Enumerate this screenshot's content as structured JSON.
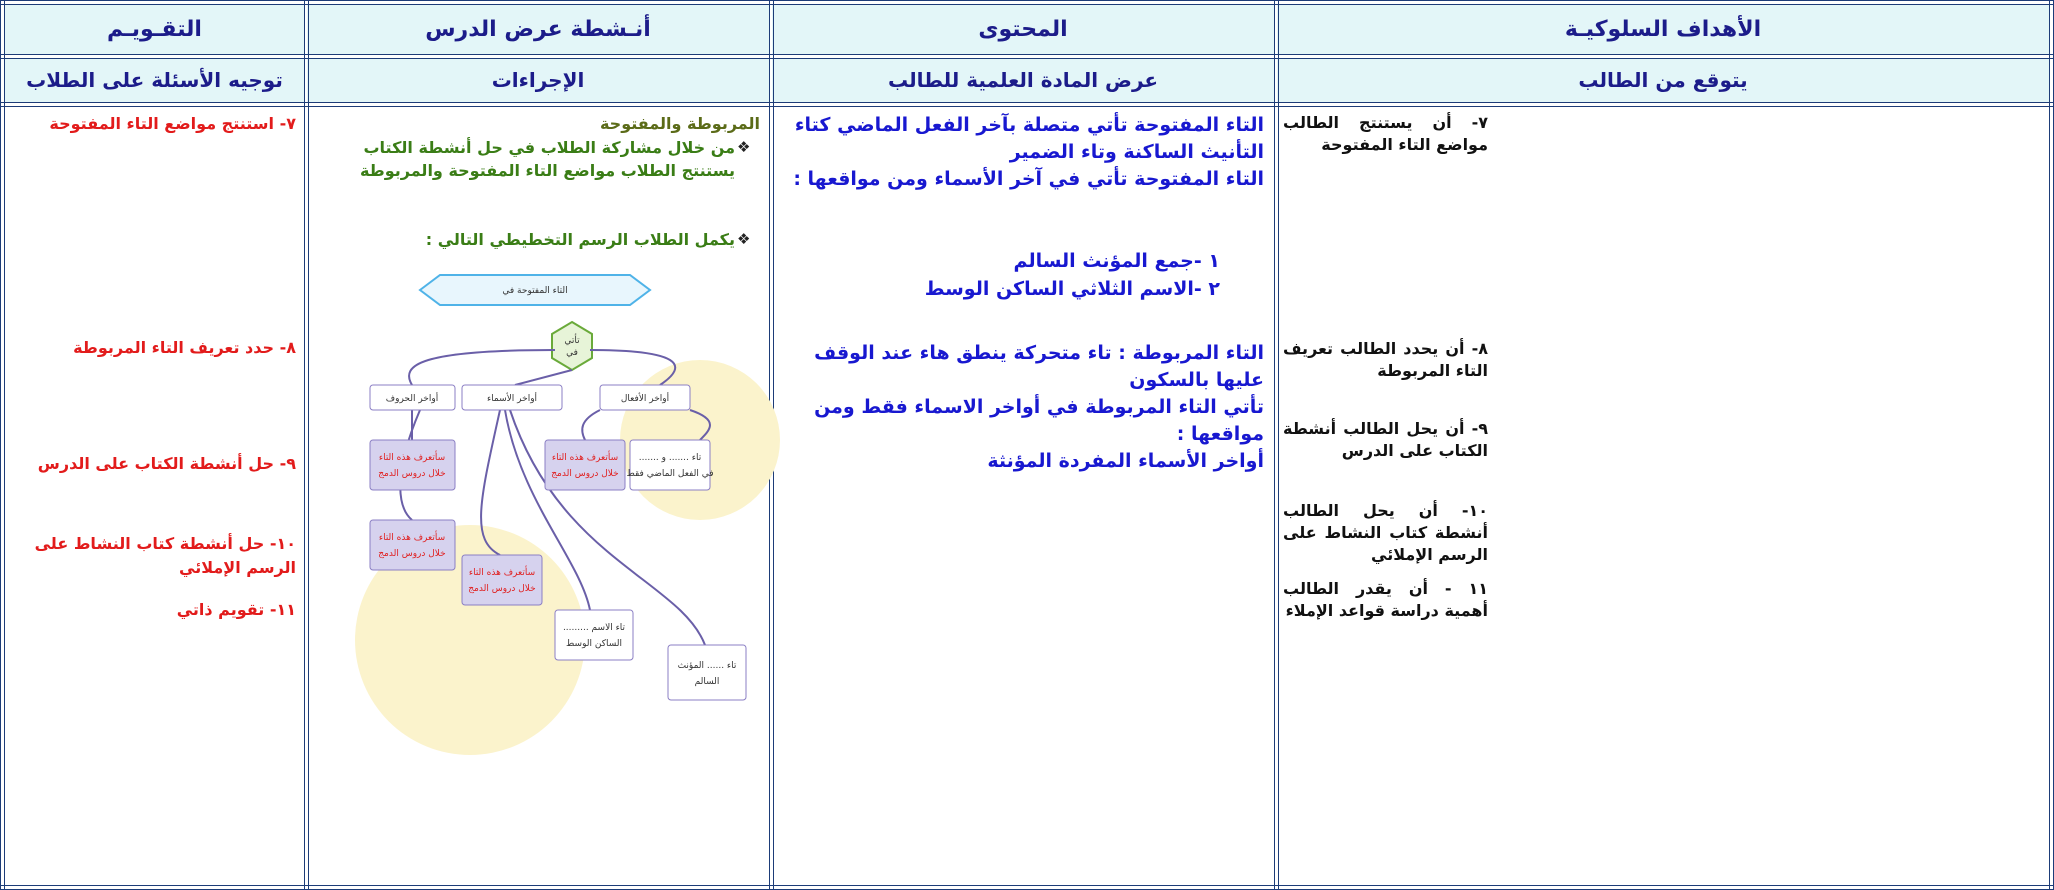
{
  "header": {
    "columns": [
      "الأهداف السلوكيـة",
      "المحتوى",
      "أنـشطة عرض الدرس",
      "التقـويـم"
    ]
  },
  "subheader": [
    "يتوقع من الطالب",
    "عرض المادة العلمية للطالب",
    "الإجراءات",
    "توجيه الأسئلة على الطلاب"
  ],
  "objectives": [
    "٧- أن يستنتج الطالب مواضع التاء المفتوحة",
    "٨- أن يحدد الطالب تعريف التاء المربوطة",
    "٩- أن يحل الطالب أنشطة الكتاب على الدرس",
    "١٠- أن يحل الطالب أنشطة كتاب النشاط على الرسم الإملائي",
    "١١ - أن يقدر الطالب أهمية دراسة قواعد الإملاء"
  ],
  "content": {
    "paragraph_1": "التاء المفتوحة تأتي متصلة بآخر الفعل الماضي كتاء التأنيث الساكنة وتاء الضمير",
    "paragraph_2": "التاء المفتوحة تأتي في آخر الأسماء ومن مواقعها :",
    "list": [
      "١ -جمع المؤنث السالم",
      "٢ -الاسم الثلاثي الساكن الوسط"
    ],
    "paragraph_3": "التاء المربوطة : تاء متحركة ينطق هاء عند الوقف عليها بالسكون",
    "paragraph_4": "تأتي التاء المربوطة في أواخر الاسماء فقط ومن مواقعها :",
    "paragraph_5": "أواخر الأسماء المفردة المؤنثة"
  },
  "activities": {
    "intro": "المربوطة والمفتوحة",
    "bullets": [
      "من خلال مشاركة الطلاب في حل أنشطة الكتاب يستنتج الطلاب مواضع التاء المفتوحة والمربوطة",
      "يكمل الطلاب الرسم التخطيطي التالي :"
    ]
  },
  "diagram": {
    "top": "التاء المفتوحة في",
    "hub": [
      "تأتي",
      "في"
    ],
    "branches": [
      "أواخر الحروف",
      "أواخر الأسماء",
      "أواخر الأفعال"
    ],
    "boxes": [
      [
        "سأتعرف هذه التاء",
        "خلال دروس الدمج"
      ],
      [
        "سأتعرف هذه التاء",
        "خلال دروس الدمج"
      ],
      [
        "تاء ....... و .......",
        "في الفعل الماضي فقط"
      ],
      [
        "سأتعرف هذه التاء",
        "خلال دروس الدمج"
      ],
      [
        "سأتعرف هذه التاء",
        "خلال دروس الدمج"
      ],
      [
        "تاء الاسم .........",
        "الساكن الوسط"
      ],
      [
        "تاء ...... المؤنث",
        "السالم"
      ]
    ]
  },
  "evaluation": [
    "٧- استنتج مواضع التاء المفتوحة",
    "٨- حدد تعريف التاء المربوطة",
    "٩- حل أنشطة الكتاب على الدرس",
    "١٠- حل أنشطة كتاب النشاط على الرسم الإملائي",
    "١١- تقويم ذاتي"
  ]
}
